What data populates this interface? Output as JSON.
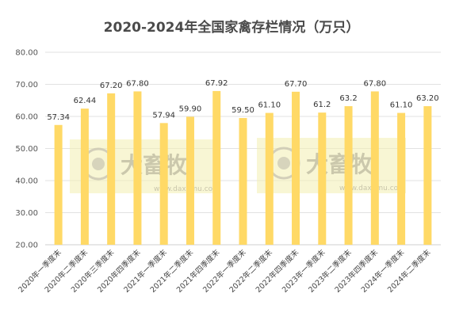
{
  "chart_data": {
    "type": "bar",
    "title": "2020-2024年全国家禽存栏情况（万只）",
    "xlabel": "",
    "ylabel": "",
    "ylim": [
      20,
      80
    ],
    "yticks": [
      "20.00",
      "30.00",
      "40.00",
      "50.00",
      "60.00",
      "70.00",
      "80.00"
    ],
    "grid": true,
    "legend": "none",
    "bar_color": "#ffd966",
    "categories": [
      "2020年一季度末",
      "2020年二季度末",
      "2020年三季度末",
      "2020年四季度末",
      "2021年一季度末",
      "2021年二季度末",
      "2021年四季度末",
      "2022年一季度末",
      "2022年二季度末",
      "2022年四季度末",
      "2023年一季度末",
      "2023年二季度末",
      "2023年四季度末",
      "2024年一季度末",
      "2024年二季度末"
    ],
    "values": [
      57.34,
      62.44,
      67.2,
      67.8,
      57.94,
      59.9,
      67.92,
      59.5,
      61.1,
      67.7,
      61.2,
      63.2,
      67.8,
      61.1,
      63.2
    ],
    "data_labels": [
      "57.34",
      "62.44",
      "67.20",
      "67.80",
      "57.94",
      "59.90",
      "67.92",
      "59.50",
      "61.10",
      "67.70",
      "61.2",
      "63.2",
      "67.80",
      "61.10",
      "63.20"
    ]
  },
  "watermark": {
    "brand": "大畜牧",
    "site": "www.daxumu.com"
  }
}
